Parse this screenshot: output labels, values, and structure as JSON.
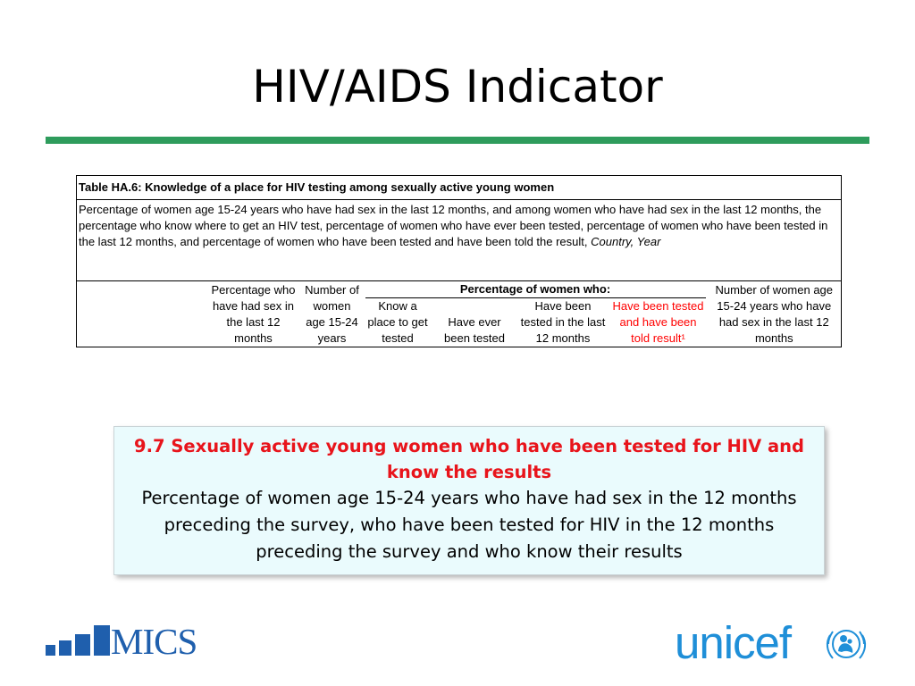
{
  "slide": {
    "title": "HIV/AIDS Indicator"
  },
  "colors": {
    "rule": "#2e9c5c",
    "mics_blue": "#1f5fad",
    "unicef_blue": "#1f8fd8",
    "callout_title_red": "#e8141b",
    "header_red": "#ff0000"
  },
  "table": {
    "caption": "Table HA.6: Knowledge of a place for HIV testing among sexually active young women",
    "description": "Percentage of women age 15-24 years who have had sex in the last 12 months, and among women who have had sex in the last 12 months, the percentage who know where to get an HIV test, percentage of women who have ever been tested, percentage of women who have been tested in the last 12 months, and percentage of women who have been tested and have been told the result, ",
    "description_italic": "Country, Year",
    "group_header": "Percentage of women who:",
    "columns": {
      "c1": "Percentage who have had sex in the last 12 months",
      "c2": "Number of women age 15-24 years",
      "c3": "Know a place to get tested",
      "c4": "Have ever been tested",
      "c5": "Have been tested in the last 12 months",
      "c6": "Have been tested and have been told result¹",
      "c7": "Number of women age 15-24 years who have had sex in the last 12 months"
    }
  },
  "callout": {
    "title": "9.7 Sexually active young women who have been tested for HIV and know the results",
    "body": "Percentage of women age 15-24 years who have had sex in the 12 months preceding the survey, who have been tested for HIV in the 12 months preceding the survey and who know their results"
  },
  "logos": {
    "mics": "MICS",
    "unicef": "unicef"
  }
}
